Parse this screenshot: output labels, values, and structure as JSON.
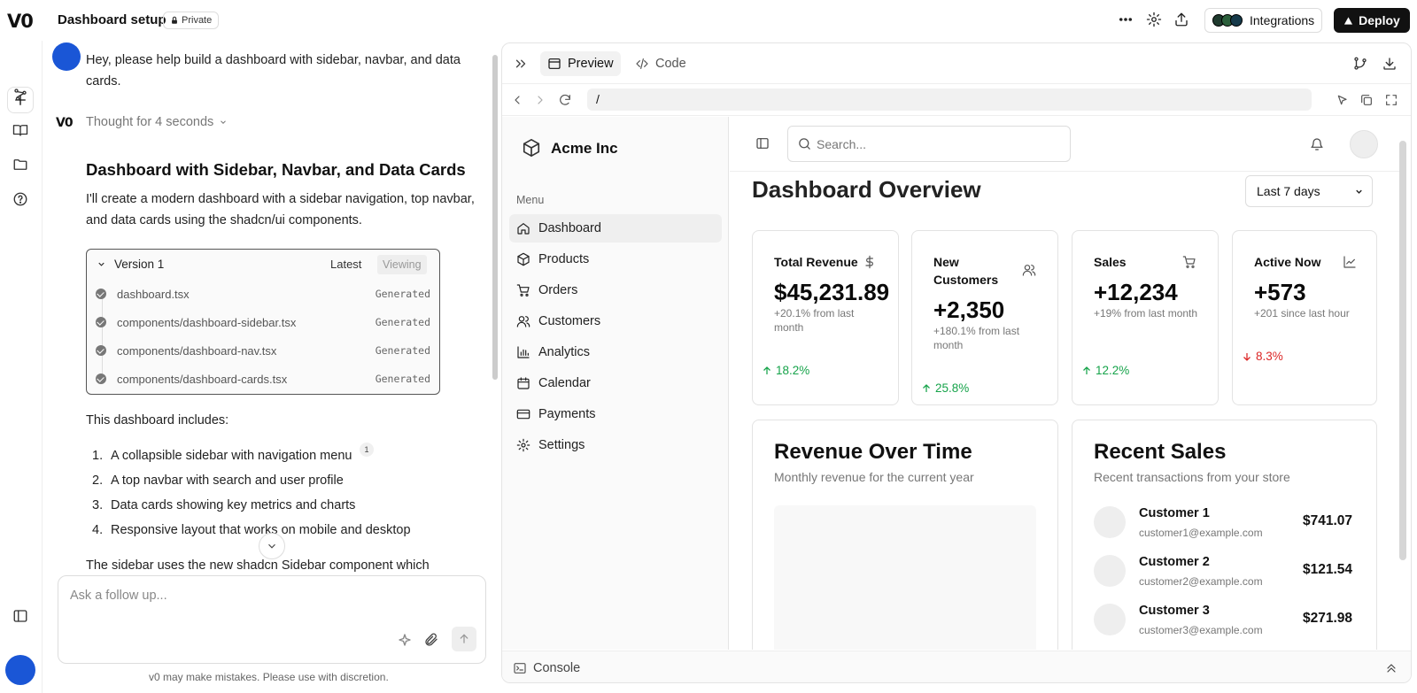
{
  "topbar": {
    "logo": "V0",
    "project_title": "Dashboard setup",
    "privacy": "Private",
    "integrations_label": "Integrations",
    "deploy_label": "Deploy"
  },
  "chat": {
    "user_message": "Hey, please help build a dashboard with sidebar, navbar, and data cards.",
    "thought": "Thought for 4 seconds",
    "heading": "Dashboard with Sidebar, Navbar, and Data Cards",
    "intro": "I'll create a modern dashboard with a sidebar navigation, top navbar, and data cards using the shadcn/ui components.",
    "version": {
      "title": "Version 1",
      "latest": "Latest",
      "viewing": "Viewing",
      "files": [
        {
          "name": "dashboard.tsx",
          "status": "Generated"
        },
        {
          "name": "components/dashboard-sidebar.tsx",
          "status": "Generated"
        },
        {
          "name": "components/dashboard-nav.tsx",
          "status": "Generated"
        },
        {
          "name": "components/dashboard-cards.tsx",
          "status": "Generated"
        }
      ]
    },
    "includes_label": "This dashboard includes:",
    "list": [
      {
        "num": "1.",
        "text": "A collapsible sidebar with navigation menu",
        "sup": "1"
      },
      {
        "num": "2.",
        "text": "A top navbar with search and user profile"
      },
      {
        "num": "3.",
        "text": "Data cards showing key metrics and charts"
      },
      {
        "num": "4.",
        "text": "Responsive layout that works on mobile and desktop"
      }
    ],
    "trailing": "The sidebar uses the new shadcn Sidebar component which",
    "composer_placeholder": "Ask a follow up...",
    "disclaimer": "v0 may make mistakes. Please use with discretion."
  },
  "preview": {
    "tab_preview": "Preview",
    "tab_code": "Code",
    "url": "/",
    "console_label": "Console",
    "app": {
      "brand": "Acme Inc",
      "menu_label": "Menu",
      "nav": [
        {
          "label": "Dashboard",
          "icon": "home-icon"
        },
        {
          "label": "Products",
          "icon": "package-icon"
        },
        {
          "label": "Orders",
          "icon": "cart-icon"
        },
        {
          "label": "Customers",
          "icon": "users-icon"
        },
        {
          "label": "Analytics",
          "icon": "bar-chart-icon"
        },
        {
          "label": "Calendar",
          "icon": "calendar-icon"
        },
        {
          "label": "Payments",
          "icon": "credit-card-icon"
        },
        {
          "label": "Settings",
          "icon": "gear-icon"
        }
      ],
      "search_placeholder": "Search...",
      "page_title": "Dashboard Overview",
      "range_selected": "Last 7 days",
      "cards": [
        {
          "title": "Total Revenue",
          "value": "$45,231.89",
          "sub": "+20.1% from last month",
          "trend": "18.2%",
          "dir": "up",
          "icon": "dollar-icon"
        },
        {
          "title": "New Customers",
          "value": "+2,350",
          "sub": "+180.1% from last month",
          "trend": "25.8%",
          "dir": "up",
          "icon": "users-icon"
        },
        {
          "title": "Sales",
          "value": "+12,234",
          "sub": "+19% from last month",
          "trend": "12.2%",
          "dir": "up",
          "icon": "cart-icon"
        },
        {
          "title": "Active Now",
          "value": "+573",
          "sub": "+201 since last hour",
          "trend": "8.3%",
          "dir": "down",
          "icon": "trend-icon"
        }
      ],
      "revenue": {
        "title": "Revenue Over Time",
        "subtitle": "Monthly revenue for the current year"
      },
      "sales": {
        "title": "Recent Sales",
        "subtitle": "Recent transactions from your store",
        "items": [
          {
            "name": "Customer 1",
            "email": "customer1@example.com",
            "amount": "$741.07"
          },
          {
            "name": "Customer 2",
            "email": "customer2@example.com",
            "amount": "$121.54"
          },
          {
            "name": "Customer 3",
            "email": "customer3@example.com",
            "amount": "$271.98"
          }
        ]
      }
    }
  }
}
